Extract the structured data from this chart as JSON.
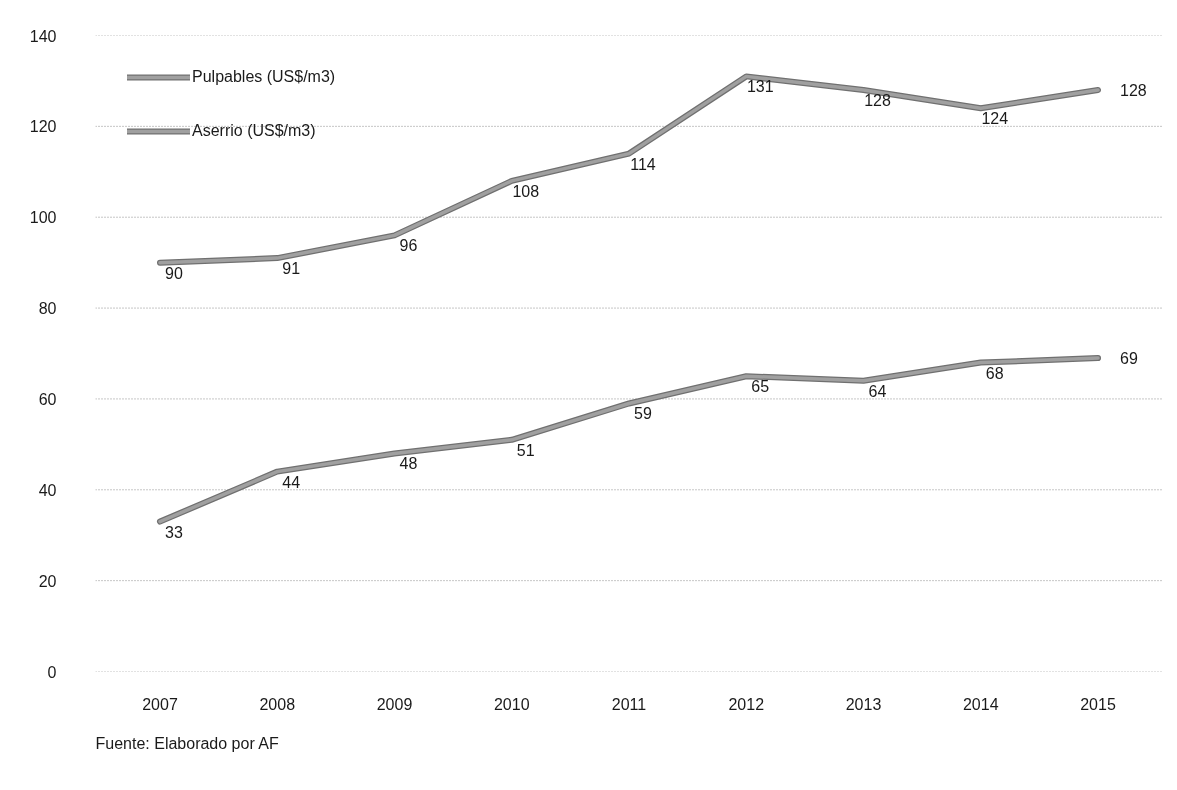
{
  "chart_data": {
    "type": "line",
    "categories": [
      "2007",
      "2008",
      "2009",
      "2010",
      "2011",
      "2012",
      "2013",
      "2014",
      "2015"
    ],
    "series": [
      {
        "name": "Pulpables (US$/m3)",
        "color": "#a0a0a0",
        "values": [
          33,
          44,
          48,
          51,
          59,
          65,
          64,
          68,
          69
        ]
      },
      {
        "name": "Aserrio (US$/m3)",
        "color": "#a0a0a0",
        "values": [
          90,
          91,
          96,
          108,
          114,
          131,
          128,
          124,
          128
        ]
      }
    ],
    "ylim": [
      0,
      140
    ],
    "yticks": [
      0,
      20,
      40,
      60,
      80,
      100,
      120,
      140
    ],
    "grid": "y",
    "legend": "top left",
    "data_labels": true,
    "annotations": [
      "Fuente: Elaborado por AF"
    ]
  }
}
